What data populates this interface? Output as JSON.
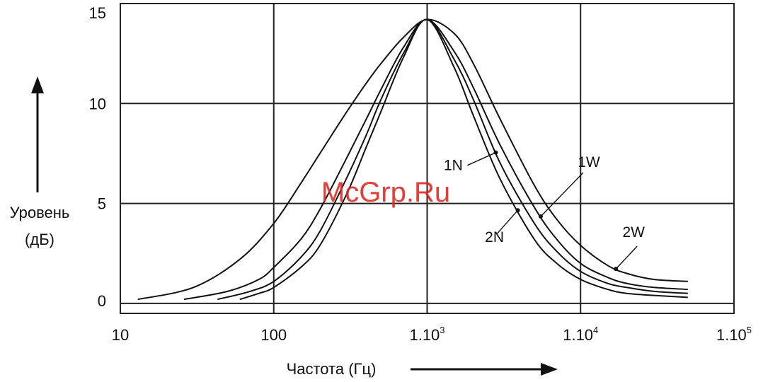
{
  "watermark": "McGrp.Ru",
  "chart_data": {
    "type": "line",
    "ylabel_line1": "Уровень",
    "ylabel_line2": "(дБ)",
    "xlabel": "Частота (Гц)",
    "x_scale": "log",
    "xlim": [
      10,
      100000
    ],
    "ylim": [
      -0.5,
      15
    ],
    "grid": true,
    "x_ticks": [
      {
        "value": 10,
        "base": "10",
        "exp": ""
      },
      {
        "value": 100,
        "base": "100",
        "exp": ""
      },
      {
        "value": 1000,
        "base": "1.10",
        "exp": "3"
      },
      {
        "value": 10000,
        "base": "1.10",
        "exp": "4"
      },
      {
        "value": 100000,
        "base": "1.10",
        "exp": "5"
      }
    ],
    "y_ticks": [
      {
        "value": 0,
        "label": "0"
      },
      {
        "value": 5,
        "label": "5"
      },
      {
        "value": 10,
        "label": "10"
      },
      {
        "value": 15,
        "label": "15"
      }
    ],
    "series": [
      {
        "name": "2W",
        "x": [
          13,
          30,
          60,
          100,
          150,
          200,
          300,
          400,
          500,
          700,
          1000,
          1500,
          2000,
          3000,
          5000,
          7000,
          10000,
          15000,
          20000,
          30000,
          50000
        ],
        "y": [
          0.2,
          0.8,
          2.2,
          4.0,
          6.0,
          7.5,
          9.6,
          11.0,
          12.0,
          13.3,
          14.2,
          13.5,
          12.0,
          9.2,
          5.9,
          4.2,
          2.9,
          1.9,
          1.5,
          1.2,
          1.1
        ]
      },
      {
        "name": "1W",
        "x": [
          26,
          50,
          80,
          100,
          150,
          200,
          300,
          400,
          500,
          700,
          1000,
          1500,
          2000,
          3000,
          5000,
          7000,
          10000,
          15000,
          20000,
          30000,
          50000
        ],
        "y": [
          0.2,
          0.6,
          1.2,
          1.8,
          3.2,
          4.7,
          7.3,
          9.2,
          10.7,
          12.8,
          14.2,
          12.6,
          10.8,
          7.9,
          4.8,
          3.2,
          2.0,
          1.3,
          1.0,
          0.8,
          0.7
        ]
      },
      {
        "name": "1N",
        "x": [
          43,
          70,
          100,
          150,
          200,
          300,
          400,
          500,
          700,
          1000,
          1500,
          2000,
          3000,
          5000,
          7000,
          10000,
          15000,
          20000,
          30000,
          50000
        ],
        "y": [
          0.2,
          0.6,
          1.1,
          2.3,
          3.6,
          6.3,
          8.4,
          10.2,
          12.5,
          14.2,
          12.2,
          10.2,
          7.0,
          4.0,
          2.6,
          1.6,
          1.0,
          0.8,
          0.6,
          0.5
        ]
      },
      {
        "name": "2N",
        "x": [
          60,
          80,
          100,
          150,
          200,
          300,
          400,
          500,
          700,
          1000,
          1500,
          2000,
          3000,
          5000,
          7000,
          10000,
          15000,
          20000,
          30000,
          50000
        ],
        "y": [
          0.2,
          0.5,
          0.8,
          1.8,
          2.9,
          5.5,
          7.8,
          9.6,
          12.3,
          14.2,
          11.8,
          9.4,
          6.2,
          3.2,
          2.0,
          1.2,
          0.7,
          0.5,
          0.4,
          0.3
        ]
      }
    ],
    "annotations": [
      {
        "text": "1N",
        "series": "1N",
        "x": 2800
      },
      {
        "text": "1W",
        "series": "1W",
        "x": 5500
      },
      {
        "text": "2N",
        "series": "2N",
        "x": 3900
      },
      {
        "text": "2W",
        "series": "2W",
        "x": 17000
      }
    ],
    "colors": {
      "line": "#111111",
      "grid": "#222222",
      "watermark": "#e0231c"
    }
  }
}
